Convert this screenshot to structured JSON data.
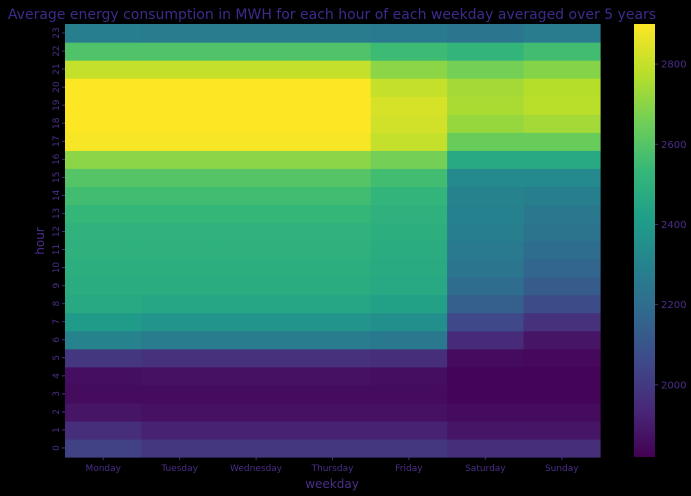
{
  "chart_data": {
    "type": "heatmap",
    "title": "Average energy consumption in MWH for each hour of each weekday averaged over 5 years",
    "xlabel": "weekday",
    "ylabel": "hour",
    "x_categories": [
      "Monday",
      "Tuesday",
      "Wednesday",
      "Thursday",
      "Friday",
      "Saturday",
      "Sunday"
    ],
    "y_categories": [
      "0",
      "1",
      "2",
      "3",
      "4",
      "5",
      "6",
      "7",
      "8",
      "9",
      "10",
      "11",
      "12",
      "13",
      "14",
      "15",
      "16",
      "17",
      "18",
      "19",
      "20",
      "21",
      "22",
      "23"
    ],
    "colorscale": "viridis",
    "colorbar": {
      "range": [
        1820,
        2900
      ],
      "ticks": [
        2000,
        2200,
        2400,
        2600,
        2800
      ]
    },
    "values": [
      [
        2030,
        1990,
        1990,
        1990,
        1990,
        1960,
        1960
      ],
      [
        1960,
        1920,
        1920,
        1920,
        1920,
        1880,
        1880
      ],
      [
        1880,
        1870,
        1870,
        1870,
        1870,
        1850,
        1850
      ],
      [
        1850,
        1850,
        1850,
        1850,
        1850,
        1830,
        1830
      ],
      [
        1860,
        1870,
        1870,
        1870,
        1860,
        1830,
        1830
      ],
      [
        1990,
        1970,
        1970,
        1970,
        1960,
        1850,
        1840
      ],
      [
        2300,
        2270,
        2270,
        2270,
        2250,
        1950,
        1880
      ],
      [
        2400,
        2370,
        2370,
        2370,
        2350,
        2050,
        1970
      ],
      [
        2460,
        2450,
        2450,
        2450,
        2430,
        2140,
        2060
      ],
      [
        2480,
        2480,
        2480,
        2480,
        2460,
        2200,
        2130
      ],
      [
        2490,
        2490,
        2490,
        2490,
        2470,
        2240,
        2170
      ],
      [
        2500,
        2500,
        2500,
        2500,
        2480,
        2260,
        2200
      ],
      [
        2510,
        2510,
        2510,
        2510,
        2490,
        2280,
        2230
      ],
      [
        2530,
        2530,
        2530,
        2530,
        2500,
        2290,
        2250
      ],
      [
        2560,
        2560,
        2560,
        2560,
        2520,
        2300,
        2280
      ],
      [
        2600,
        2600,
        2600,
        2600,
        2560,
        2330,
        2330
      ],
      [
        2700,
        2700,
        2700,
        2700,
        2660,
        2460,
        2460
      ],
      [
        2890,
        2890,
        2890,
        2890,
        2800,
        2640,
        2640
      ],
      [
        2900,
        2900,
        2900,
        2900,
        2820,
        2720,
        2740
      ],
      [
        2900,
        2900,
        2900,
        2900,
        2830,
        2750,
        2780
      ],
      [
        2900,
        2900,
        2900,
        2900,
        2800,
        2740,
        2770
      ],
      [
        2800,
        2800,
        2800,
        2800,
        2700,
        2660,
        2690
      ],
      [
        2590,
        2590,
        2590,
        2590,
        2550,
        2520,
        2560
      ],
      [
        2280,
        2270,
        2270,
        2270,
        2260,
        2240,
        2270
      ]
    ]
  }
}
